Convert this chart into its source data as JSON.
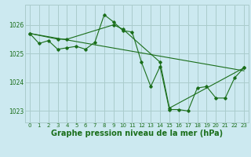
{
  "title": "Graphe pression niveau de la mer (hPa)",
  "bg_color": "#cce9f0",
  "grid_color": "#aacccc",
  "line_color": "#1a6e1a",
  "marker_color": "#1a6e1a",
  "xlim": [
    -0.5,
    23.5
  ],
  "ylim": [
    1022.6,
    1026.7
  ],
  "yticks": [
    1023,
    1024,
    1025,
    1026
  ],
  "xticks": [
    0,
    1,
    2,
    3,
    4,
    5,
    6,
    7,
    8,
    9,
    10,
    11,
    12,
    13,
    14,
    15,
    16,
    17,
    18,
    19,
    20,
    21,
    22,
    23
  ],
  "series1_x": [
    0,
    1,
    2,
    3,
    4,
    5,
    6,
    7,
    8,
    9,
    10,
    11,
    12,
    13,
    14,
    15,
    16,
    17,
    18,
    19,
    20,
    21,
    22,
    23
  ],
  "series1_y": [
    1025.7,
    1025.35,
    1025.45,
    1025.15,
    1025.2,
    1025.25,
    1025.15,
    1025.4,
    1026.35,
    1026.1,
    1025.8,
    1025.75,
    1024.7,
    1023.85,
    1024.55,
    1023.05,
    1023.05,
    1023.0,
    1023.8,
    1023.85,
    1023.45,
    1023.45,
    1024.15,
    1024.5
  ],
  "series2_x": [
    0,
    3,
    4,
    9,
    10,
    14,
    15,
    23
  ],
  "series2_y": [
    1025.7,
    1025.5,
    1025.5,
    1026.0,
    1025.85,
    1024.7,
    1023.1,
    1024.5
  ],
  "series3_x": [
    0,
    23
  ],
  "series3_y": [
    1025.7,
    1024.4
  ],
  "ylabel_fontsize": 5.5,
  "xlabel_fontsize": 7.0,
  "tick_fontsize": 5.5
}
